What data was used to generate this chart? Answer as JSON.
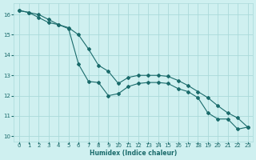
{
  "xlabel": "Humidex (Indice chaleur)",
  "ylabel": "",
  "xlim": [
    -0.5,
    23.5
  ],
  "ylim": [
    9.75,
    16.55
  ],
  "yticks": [
    10,
    11,
    12,
    13,
    14,
    15,
    16
  ],
  "xticks": [
    0,
    1,
    2,
    3,
    4,
    5,
    6,
    7,
    8,
    9,
    10,
    11,
    12,
    13,
    14,
    15,
    16,
    17,
    18,
    19,
    20,
    21,
    22,
    23
  ],
  "bg_color": "#cff0f0",
  "grid_color": "#aadada",
  "line_color": "#1a6b6b",
  "line1_x": [
    0,
    1,
    2,
    3,
    4,
    5,
    6,
    7,
    8,
    9,
    10,
    11,
    12,
    13,
    14,
    15,
    16,
    17,
    18,
    19,
    20,
    21,
    22,
    23
  ],
  "line1_y": [
    16.2,
    16.1,
    16.0,
    15.75,
    15.5,
    15.3,
    13.55,
    12.7,
    12.65,
    12.0,
    12.1,
    12.45,
    12.6,
    12.65,
    12.65,
    12.6,
    12.35,
    12.2,
    11.9,
    11.15,
    10.85,
    10.85,
    10.35,
    10.45
  ],
  "line2_x": [
    0,
    1,
    2,
    3,
    4,
    5,
    6,
    7,
    8,
    9,
    10,
    11,
    12,
    13,
    14,
    15,
    16,
    17,
    18,
    19,
    20,
    21,
    22,
    23
  ],
  "line2_y": [
    16.2,
    16.1,
    15.85,
    15.6,
    15.5,
    15.35,
    15.0,
    14.3,
    13.5,
    13.2,
    12.6,
    12.9,
    13.0,
    13.0,
    13.0,
    12.95,
    12.75,
    12.5,
    12.2,
    11.9,
    11.5,
    11.15,
    10.9,
    10.45
  ],
  "marker": "D",
  "markersize": 2.0,
  "linewidth": 0.8,
  "xlabel_fontsize": 5.5,
  "tick_fontsize": 5.0
}
